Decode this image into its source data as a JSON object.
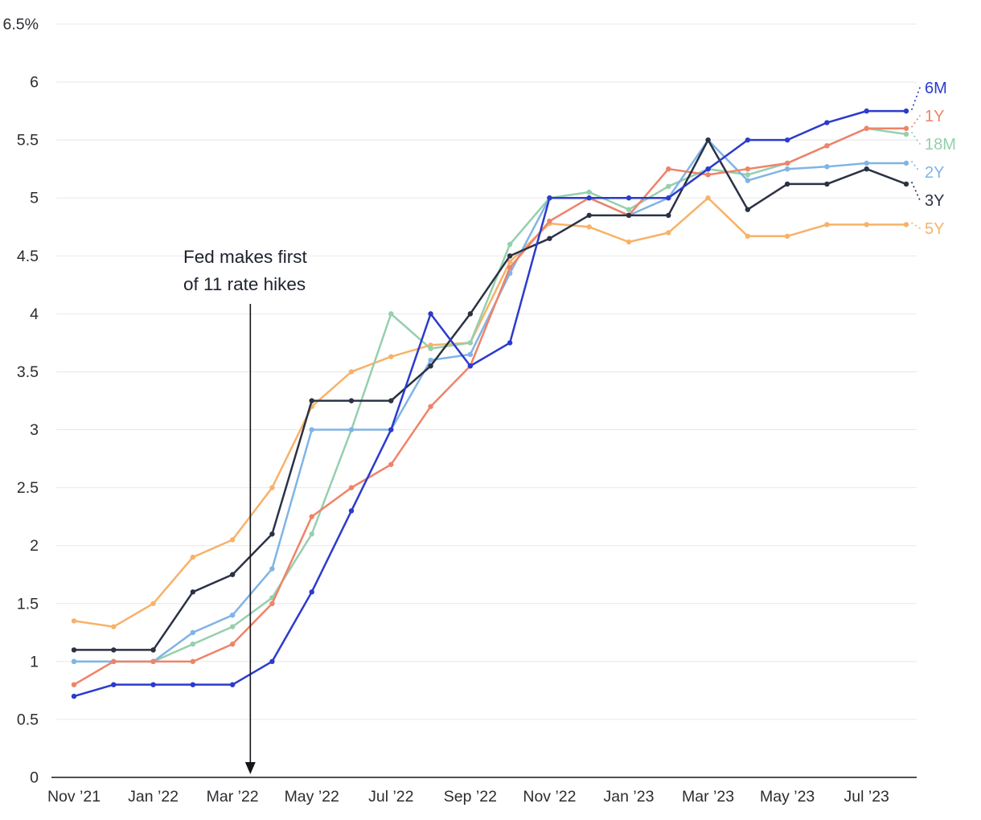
{
  "chart_data": {
    "type": "line",
    "title": "",
    "xlabel": "",
    "ylabel": "",
    "ylim": [
      0,
      6.5
    ],
    "y_max": 6.5,
    "y_tick_step": 0.5,
    "grid": "horizontal",
    "legend_position": "right-end-labels",
    "y_tick_labels": [
      "0",
      "0.5",
      "1",
      "1.5",
      "2",
      "2.5",
      "3",
      "3.5",
      "4",
      "4.5",
      "5",
      "5.5",
      "6",
      "6.5%"
    ],
    "x_tick_labels": [
      "Nov ’21",
      "Jan ’22",
      "Mar ’22",
      "May ’22",
      "Jul ’22",
      "Sep ’22",
      "Nov ’22",
      "Jan ’23",
      "Mar ’23",
      "May ’23",
      "Jul ’23"
    ],
    "months": [
      "Nov ’21",
      "Dec ’21",
      "Jan ’22",
      "Feb ’22",
      "Mar ’22",
      "Apr ’22",
      "May ’22",
      "Jun ’22",
      "Jul ’22",
      "Aug ’22",
      "Sep ’22",
      "Oct ’22",
      "Nov ’22",
      "Dec ’22",
      "Jan ’23",
      "Feb ’23",
      "Mar ’23",
      "Apr ’23",
      "May ’23",
      "Jun ’23",
      "Jul ’23",
      "Aug ’23"
    ],
    "series": [
      {
        "name": "5Y",
        "color": "#f7b268",
        "values": [
          1.35,
          1.3,
          1.5,
          1.9,
          2.05,
          2.5,
          3.2,
          3.5,
          3.63,
          3.73,
          3.75,
          4.45,
          4.78,
          4.75,
          4.62,
          4.7,
          5.0,
          4.67,
          4.67,
          4.77,
          4.77,
          4.77
        ]
      },
      {
        "name": "18M",
        "color": "#95cfad",
        "values": [
          1.0,
          1.0,
          1.0,
          1.15,
          1.3,
          1.55,
          2.1,
          3.0,
          4.0,
          3.7,
          3.75,
          4.6,
          5.0,
          5.05,
          4.9,
          5.1,
          5.25,
          5.2,
          5.3,
          5.45,
          5.6,
          5.55
        ]
      },
      {
        "name": "2Y",
        "color": "#80b4e6",
        "values": [
          1.0,
          1.0,
          1.0,
          1.25,
          1.4,
          1.8,
          3.0,
          3.0,
          3.0,
          3.6,
          3.65,
          4.35,
          5.0,
          5.0,
          4.85,
          5.0,
          5.5,
          5.15,
          5.25,
          5.27,
          5.3,
          5.3
        ]
      },
      {
        "name": "1Y",
        "color": "#ef8368",
        "values": [
          0.8,
          1.0,
          1.0,
          1.0,
          1.15,
          1.5,
          2.25,
          2.5,
          2.7,
          3.2,
          3.55,
          4.4,
          4.8,
          5.0,
          4.85,
          5.25,
          5.2,
          5.25,
          5.3,
          5.45,
          5.6,
          5.6
        ]
      },
      {
        "name": "3Y",
        "color": "#2b3245",
        "values": [
          1.1,
          1.1,
          1.1,
          1.6,
          1.75,
          2.1,
          3.25,
          3.25,
          3.25,
          3.55,
          4.0,
          4.5,
          4.65,
          4.85,
          4.85,
          4.85,
          5.5,
          4.9,
          5.12,
          5.12,
          5.25,
          5.12
        ]
      },
      {
        "name": "6M",
        "color": "#2b3bce",
        "values": [
          0.7,
          0.8,
          0.8,
          0.8,
          0.8,
          1.0,
          1.6,
          2.3,
          3.0,
          4.0,
          3.55,
          3.75,
          5.0,
          5.0,
          5.0,
          5.0,
          5.25,
          5.5,
          5.5,
          5.65,
          5.75,
          5.75
        ]
      }
    ],
    "annotation": {
      "lines": [
        "Fed makes first",
        "of 11 rate hikes"
      ],
      "month_index": 4.45
    },
    "colors": {
      "grid": "#e8e8e8",
      "axis": "#16161a",
      "tick_text": "#2c2c32",
      "annotation_text": "#1c212e"
    }
  }
}
